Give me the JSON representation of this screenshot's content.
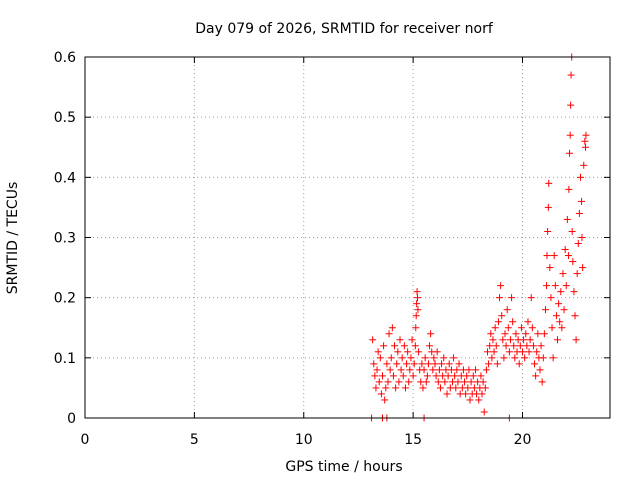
{
  "chart_data": {
    "type": "scatter",
    "title": "Day 079 of 2026, SRMTID for receiver norf",
    "xlabel": "GPS time / hours",
    "ylabel": "SRMTID / TECUs",
    "xlim": [
      0,
      24
    ],
    "ylim": [
      0,
      0.6
    ],
    "x_ticks": [
      0,
      5,
      10,
      15,
      20
    ],
    "x_tick_labels": [
      "0",
      "5",
      "10",
      "15",
      "20"
    ],
    "y_ticks": [
      0,
      0.1,
      0.2,
      0.3,
      0.4,
      0.5,
      0.6
    ],
    "y_tick_labels": [
      "0",
      "0.1",
      "0.2",
      "0.3",
      "0.4",
      "0.5",
      "0.6"
    ],
    "grid": true,
    "marker": "+",
    "marker_color": "#ff0000",
    "series": [
      {
        "name": "SRMTID",
        "points": [
          [
            13.1,
            0.0
          ],
          [
            13.6,
            0.0
          ],
          [
            13.8,
            0.0
          ],
          [
            15.5,
            0.0
          ],
          [
            19.4,
            0.0
          ],
          [
            13.15,
            0.13
          ],
          [
            13.2,
            0.09
          ],
          [
            13.25,
            0.07
          ],
          [
            13.3,
            0.05
          ],
          [
            13.35,
            0.08
          ],
          [
            13.4,
            0.11
          ],
          [
            13.45,
            0.06
          ],
          [
            13.5,
            0.1
          ],
          [
            13.55,
            0.04
          ],
          [
            13.6,
            0.07
          ],
          [
            13.65,
            0.12
          ],
          [
            13.7,
            0.03
          ],
          [
            13.75,
            0.05
          ],
          [
            13.8,
            0.09
          ],
          [
            13.85,
            0.06
          ],
          [
            13.9,
            0.14
          ],
          [
            13.95,
            0.08
          ],
          [
            14.0,
            0.1
          ],
          [
            14.05,
            0.15
          ],
          [
            14.1,
            0.07
          ],
          [
            14.15,
            0.12
          ],
          [
            14.2,
            0.05
          ],
          [
            14.25,
            0.09
          ],
          [
            14.3,
            0.11
          ],
          [
            14.35,
            0.06
          ],
          [
            14.4,
            0.13
          ],
          [
            14.45,
            0.08
          ],
          [
            14.5,
            0.1
          ],
          [
            14.55,
            0.07
          ],
          [
            14.6,
            0.12
          ],
          [
            14.65,
            0.05
          ],
          [
            14.7,
            0.09
          ],
          [
            14.75,
            0.11
          ],
          [
            14.8,
            0.06
          ],
          [
            14.85,
            0.08
          ],
          [
            14.9,
            0.1
          ],
          [
            14.95,
            0.13
          ],
          [
            15.0,
            0.07
          ],
          [
            15.05,
            0.09
          ],
          [
            15.1,
            0.12
          ],
          [
            15.12,
            0.15
          ],
          [
            15.14,
            0.17
          ],
          [
            15.16,
            0.19
          ],
          [
            15.18,
            0.21
          ],
          [
            15.2,
            0.2
          ],
          [
            15.22,
            0.18
          ],
          [
            15.25,
            0.11
          ],
          [
            15.3,
            0.08
          ],
          [
            15.35,
            0.06
          ],
          [
            15.4,
            0.09
          ],
          [
            15.45,
            0.05
          ],
          [
            15.5,
            0.08
          ],
          [
            15.55,
            0.1
          ],
          [
            15.6,
            0.06
          ],
          [
            15.65,
            0.07
          ],
          [
            15.7,
            0.09
          ],
          [
            15.75,
            0.12
          ],
          [
            15.8,
            0.14
          ],
          [
            15.85,
            0.11
          ],
          [
            15.9,
            0.08
          ],
          [
            15.95,
            0.1
          ],
          [
            16.0,
            0.09
          ],
          [
            16.05,
            0.07
          ],
          [
            16.1,
            0.11
          ],
          [
            16.15,
            0.06
          ],
          [
            16.2,
            0.08
          ],
          [
            16.25,
            0.05
          ],
          [
            16.3,
            0.09
          ],
          [
            16.35,
            0.07
          ],
          [
            16.4,
            0.1
          ],
          [
            16.45,
            0.06
          ],
          [
            16.5,
            0.08
          ],
          [
            16.55,
            0.04
          ],
          [
            16.6,
            0.07
          ],
          [
            16.65,
            0.09
          ],
          [
            16.7,
            0.05
          ],
          [
            16.75,
            0.08
          ],
          [
            16.8,
            0.06
          ],
          [
            16.85,
            0.1
          ],
          [
            16.9,
            0.07
          ],
          [
            16.95,
            0.05
          ],
          [
            17.0,
            0.08
          ],
          [
            17.05,
            0.06
          ],
          [
            17.1,
            0.09
          ],
          [
            17.15,
            0.04
          ],
          [
            17.2,
            0.07
          ],
          [
            17.25,
            0.05
          ],
          [
            17.3,
            0.08
          ],
          [
            17.35,
            0.06
          ],
          [
            17.4,
            0.04
          ],
          [
            17.45,
            0.07
          ],
          [
            17.5,
            0.05
          ],
          [
            17.55,
            0.08
          ],
          [
            17.6,
            0.03
          ],
          [
            17.65,
            0.06
          ],
          [
            17.7,
            0.04
          ],
          [
            17.75,
            0.07
          ],
          [
            17.8,
            0.05
          ],
          [
            17.85,
            0.08
          ],
          [
            17.9,
            0.04
          ],
          [
            17.95,
            0.06
          ],
          [
            18.0,
            0.03
          ],
          [
            18.05,
            0.05
          ],
          [
            18.1,
            0.07
          ],
          [
            18.15,
            0.04
          ],
          [
            18.2,
            0.06
          ],
          [
            18.25,
            0.01
          ],
          [
            18.3,
            0.05
          ],
          [
            18.35,
            0.08
          ],
          [
            18.4,
            0.11
          ],
          [
            18.45,
            0.09
          ],
          [
            18.5,
            0.12
          ],
          [
            18.55,
            0.14
          ],
          [
            18.6,
            0.1
          ],
          [
            18.65,
            0.13
          ],
          [
            18.7,
            0.11
          ],
          [
            18.75,
            0.15
          ],
          [
            18.8,
            0.12
          ],
          [
            18.85,
            0.09
          ],
          [
            18.9,
            0.16
          ],
          [
            18.95,
            0.2
          ],
          [
            19.0,
            0.22
          ],
          [
            19.05,
            0.17
          ],
          [
            19.1,
            0.13
          ],
          [
            19.15,
            0.1
          ],
          [
            19.2,
            0.14
          ],
          [
            19.25,
            0.12
          ],
          [
            19.3,
            0.18
          ],
          [
            19.35,
            0.15
          ],
          [
            19.4,
            0.11
          ],
          [
            19.45,
            0.13
          ],
          [
            19.5,
            0.2
          ],
          [
            19.55,
            0.16
          ],
          [
            19.6,
            0.12
          ],
          [
            19.65,
            0.1
          ],
          [
            19.7,
            0.14
          ],
          [
            19.75,
            0.11
          ],
          [
            19.8,
            0.13
          ],
          [
            19.85,
            0.09
          ],
          [
            19.9,
            0.12
          ],
          [
            19.95,
            0.15
          ],
          [
            20.0,
            0.11
          ],
          [
            20.05,
            0.13
          ],
          [
            20.1,
            0.1
          ],
          [
            20.15,
            0.14
          ],
          [
            20.2,
            0.12
          ],
          [
            20.25,
            0.16
          ],
          [
            20.3,
            0.11
          ],
          [
            20.35,
            0.13
          ],
          [
            20.4,
            0.2
          ],
          [
            20.45,
            0.15
          ],
          [
            20.5,
            0.12
          ],
          [
            20.55,
            0.09
          ],
          [
            20.6,
            0.07
          ],
          [
            20.65,
            0.11
          ],
          [
            20.7,
            0.14
          ],
          [
            20.75,
            0.1
          ],
          [
            20.8,
            0.08
          ],
          [
            20.85,
            0.12
          ],
          [
            20.9,
            0.06
          ],
          [
            20.95,
            0.1
          ],
          [
            21.0,
            0.14
          ],
          [
            21.05,
            0.18
          ],
          [
            21.1,
            0.22
          ],
          [
            21.12,
            0.27
          ],
          [
            21.15,
            0.31
          ],
          [
            21.18,
            0.35
          ],
          [
            21.2,
            0.39
          ],
          [
            21.25,
            0.25
          ],
          [
            21.3,
            0.2
          ],
          [
            21.35,
            0.15
          ],
          [
            21.4,
            0.1
          ],
          [
            21.45,
            0.27
          ],
          [
            21.5,
            0.22
          ],
          [
            21.55,
            0.17
          ],
          [
            21.6,
            0.13
          ],
          [
            21.65,
            0.19
          ],
          [
            21.7,
            0.16
          ],
          [
            21.75,
            0.21
          ],
          [
            21.8,
            0.15
          ],
          [
            21.85,
            0.24
          ],
          [
            21.9,
            0.18
          ],
          [
            21.95,
            0.28
          ],
          [
            22.0,
            0.22
          ],
          [
            22.05,
            0.33
          ],
          [
            22.1,
            0.27
          ],
          [
            22.12,
            0.38
          ],
          [
            22.15,
            0.44
          ],
          [
            22.18,
            0.47
          ],
          [
            22.2,
            0.52
          ],
          [
            22.22,
            0.57
          ],
          [
            22.25,
            0.6
          ],
          [
            22.27,
            0.31
          ],
          [
            22.3,
            0.26
          ],
          [
            22.35,
            0.21
          ],
          [
            22.4,
            0.17
          ],
          [
            22.45,
            0.13
          ],
          [
            22.5,
            0.24
          ],
          [
            22.55,
            0.29
          ],
          [
            22.6,
            0.34
          ],
          [
            22.65,
            0.4
          ],
          [
            22.7,
            0.36
          ],
          [
            22.72,
            0.3
          ],
          [
            22.75,
            0.25
          ],
          [
            22.8,
            0.42
          ],
          [
            22.85,
            0.46
          ],
          [
            22.88,
            0.45
          ],
          [
            22.9,
            0.47
          ]
        ]
      }
    ]
  }
}
